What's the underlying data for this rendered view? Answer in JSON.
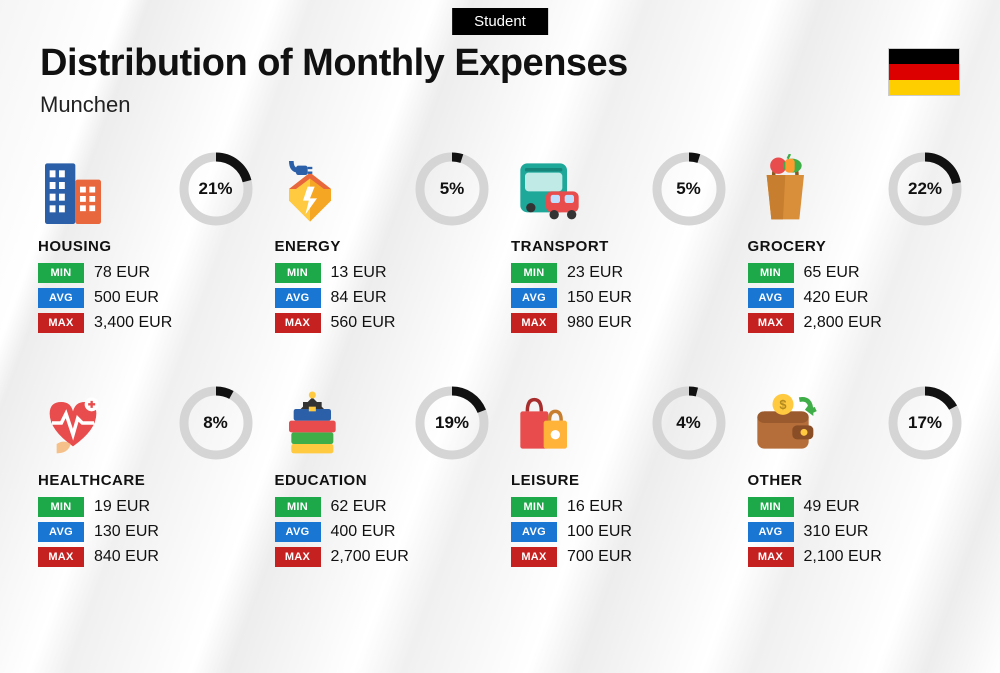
{
  "badge": "Student",
  "title": "Distribution of Monthly Expenses",
  "subtitle": "Munchen",
  "flag_colors": [
    "#000000",
    "#dd0000",
    "#ffce00"
  ],
  "currency": "EUR",
  "labels": {
    "min": "MIN",
    "avg": "AVG",
    "max": "MAX"
  },
  "tag_colors": {
    "min": "#1da84a",
    "avg": "#1976d2",
    "max": "#c62121"
  },
  "donut": {
    "radius": 32,
    "stroke_width": 9,
    "bg_color": "#d5d5d5",
    "fg_color": "#111111"
  },
  "title_fontsize": 38,
  "subtitle_fontsize": 22,
  "category_fontsize": 15,
  "value_fontsize": 16,
  "percent_fontsize": 17,
  "background_color": "#f7f7f7",
  "categories": [
    {
      "key": "housing",
      "name": "HOUSING",
      "percent": 21,
      "min": "78",
      "avg": "500",
      "max": "3,400",
      "icon": "building"
    },
    {
      "key": "energy",
      "name": "ENERGY",
      "percent": 5,
      "min": "13",
      "avg": "84",
      "max": "560",
      "icon": "energy"
    },
    {
      "key": "transport",
      "name": "TRANSPORT",
      "percent": 5,
      "min": "23",
      "avg": "150",
      "max": "980",
      "icon": "bus"
    },
    {
      "key": "grocery",
      "name": "GROCERY",
      "percent": 22,
      "min": "65",
      "avg": "420",
      "max": "2,800",
      "icon": "grocery"
    },
    {
      "key": "healthcare",
      "name": "HEALTHCARE",
      "percent": 8,
      "min": "19",
      "avg": "130",
      "max": "840",
      "icon": "heart"
    },
    {
      "key": "education",
      "name": "EDUCATION",
      "percent": 19,
      "min": "62",
      "avg": "400",
      "max": "2,700",
      "icon": "books"
    },
    {
      "key": "leisure",
      "name": "LEISURE",
      "percent": 4,
      "min": "16",
      "avg": "100",
      "max": "700",
      "icon": "bags"
    },
    {
      "key": "other",
      "name": "OTHER",
      "percent": 17,
      "min": "49",
      "avg": "310",
      "max": "2,100",
      "icon": "wallet"
    }
  ],
  "icons": {
    "building": "<rect x='6' y='8' width='26' height='52' fill='#2b5fa8' rx='2'/><rect x='32' y='22' width='22' height='38' fill='#e8673c' rx='2'/><rect x='10' y='14' width='5' height='6' fill='#fff'/><rect x='18' y='14' width='5' height='6' fill='#fff'/><rect x='10' y='24' width='5' height='6' fill='#fff'/><rect x='18' y='24' width='5' height='6' fill='#fff'/><rect x='10' y='34' width='5' height='6' fill='#fff'/><rect x='18' y='34' width='5' height='6' fill='#fff'/><rect x='10' y='44' width='5' height='6' fill='#fff'/><rect x='18' y='44' width='5' height='6' fill='#fff'/><rect x='36' y='28' width='5' height='5' fill='#fff'/><rect x='44' y='28' width='5' height='5' fill='#fff'/><rect x='36' y='36' width='5' height='5' fill='#fff'/><rect x='44' y='36' width='5' height='5' fill='#fff'/><rect x='36' y='44' width='5' height='5' fill='#fff'/><rect x='44' y='44' width='5' height='5' fill='#fff'/>",
    "energy": "<path d='M30 58 L12 40 L12 30 L30 16 L48 30 L48 40 Z' fill='#ffc940'/><path d='M30 16 L48 30 L48 40 L30 58 Z' fill='#f5a623'/><path d='M12 30 L30 16 L48 30 L42 30 L30 21 L18 30 Z' fill='#e8673c'/><path d='M28 28 L34 28 L30 38 L36 38 L26 52 L29 40 L24 40 Z' fill='#fff'/><path d='M14 6 Q14 14 20 14' stroke='#2b5fa8' stroke-width='4' fill='none'/><rect x='18' y='10' width='10' height='8' fill='#2b5fa8' rx='2'/><rect x='28' y='11' width='4' height='2' fill='#2b5fa8'/><rect x='28' y='15' width='4' height='2' fill='#2b5fa8'/>",
    "bus": "<rect x='8' y='8' width='40' height='42' fill='#1ea89a' rx='6'/><rect x='12' y='16' width='32' height='16' fill='#bfeae5' rx='3'/><rect x='12' y='12' width='32' height='3' fill='#17867a' rx='1'/><circle cx='17' cy='46' r='4' fill='#333'/><circle cx='39' cy='46' r='4' fill='#333'/><rect x='30' y='32' width='28' height='18' fill='#e84c4c' rx='5'/><rect x='34' y='35' width='8' height='7' fill='#bfdfff' rx='2'/><rect x='46' y='35' width='8' height='7' fill='#bfdfff' rx='2'/><circle cx='37' cy='52' r='4' fill='#333'/><circle cx='52' cy='52' r='4' fill='#333'/>",
    "grocery": "<path d='M16 18 L48 18 L44 56 L20 56 Z' fill='#d98f3a'/><path d='M16 18 L32 18 L30 56 L20 56 Z' fill='#c77e2e'/><path d='M22 18 Q22 8 32 8 Q42 8 42 18' stroke='#8a5a20' stroke-width='3' fill='none'/><circle cx='26' cy='10' r='7' fill='#e84c4c'/><ellipse cx='38' cy='10' rx='8' ry='6' fill='#3fae49'/><rect x='32' y='4' width='8' height='12' fill='#ff9b2f' rx='3'/><path d='M34 4 L36 0' stroke='#3fae49' stroke-width='2'/>",
    "heart": "<path d='M30 50 Q10 36 10 22 Q10 12 20 12 Q28 12 30 20 Q32 12 40 12 Q50 12 50 22 Q50 36 30 50 Z' fill='#e84c4c'/><path d='M12 30 L20 30 L24 22 L30 40 L34 26 L38 30 L48 30' stroke='#fff' stroke-width='3' fill='none'/><circle cx='46' cy='14' r='6' fill='#fff'/><path d='M46 11 L46 17 M43 14 L49 14' stroke='#e84c4c' stroke-width='2'/><path d='M16 48 Q22 44 28 48 Q26 56 16 56 Z' fill='#f5c089'/>",
    "books": "<rect x='14' y='38' width='36' height='10' fill='#3fae49' rx='2'/><rect x='12' y='28' width='40' height='10' fill='#e84c4c' rx='2'/><rect x='16' y='18' width='32' height='10' fill='#2b5fa8' rx='2'/><rect x='14' y='48' width='36' height='8' fill='#ffc940' rx='2'/><path d='M22 18 L32 8 L42 18 Z' fill='#333'/><rect x='24' y='12' width='16' height='6' fill='#333'/><circle cx='32' cy='6' r='3' fill='#ffc940'/><rect x='29' y='16' width='6' height='4' fill='#ffc940'/>",
    "bags": "<rect x='8' y='20' width='24' height='32' fill='#e84c4c' rx='2'/><path d='M14 20 Q14 10 20 10 Q26 10 26 20' stroke='#a82e2e' stroke-width='3' fill='none'/><rect x='28' y='28' width='20' height='24' fill='#ffb338' rx='2'/><path d='M33 28 Q33 20 38 20 Q43 20 43 28' stroke='#c77e2e' stroke-width='3' fill='none'/><circle cx='38' cy='40' r='4' fill='#fff'/>",
    "wallet": "<rect x='8' y='20' width='44' height='32' fill='#b56e3a' rx='6'/><rect x='8' y='20' width='44' height='10' fill='#9a5a2e' rx='6'/><rect x='38' y='32' width='18' height='12' fill='#8a4e26' rx='4'/><circle cx='48' cy='38' r='3' fill='#ffc940'/><circle cx='30' cy='14' r='9' fill='#ffc940'/><text x='30' y='18' font-size='11' text-anchor='middle' fill='#b58a1e' font-weight='bold'>$</text><path d='M44 10 Q54 8 54 20 L50 17 M54 20 L58 18' stroke='#3fae49' stroke-width='4' fill='none'/>"
  }
}
